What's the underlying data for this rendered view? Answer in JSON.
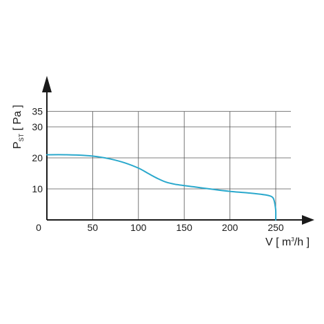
{
  "chart_data": {
    "type": "line",
    "xlabel": {
      "main": "V [ m",
      "sup": "3",
      "rest": "/h ]"
    },
    "ylabel": {
      "main": "P",
      "sub": "ST",
      "rest": " [ Pa ]"
    },
    "xlim": [
      0,
      270
    ],
    "ylim": [
      0,
      35
    ],
    "x_ticks": [
      50,
      100,
      150,
      200,
      250
    ],
    "y_ticks": [
      10,
      20,
      30,
      35
    ],
    "origin_label": "0",
    "grid": true,
    "series": [
      {
        "color": "#29a8cc",
        "x": [
          0,
          20,
          40,
          55,
          70,
          85,
          100,
          110,
          120,
          130,
          140,
          160,
          180,
          200,
          220,
          240,
          246,
          248,
          249,
          250,
          250
        ],
        "y": [
          21.0,
          21.0,
          20.8,
          20.4,
          19.6,
          18.4,
          16.7,
          15.1,
          13.5,
          12.2,
          11.5,
          10.7,
          9.9,
          9.2,
          8.7,
          8.0,
          7.4,
          6.5,
          5.2,
          3.0,
          0
        ]
      }
    ]
  }
}
